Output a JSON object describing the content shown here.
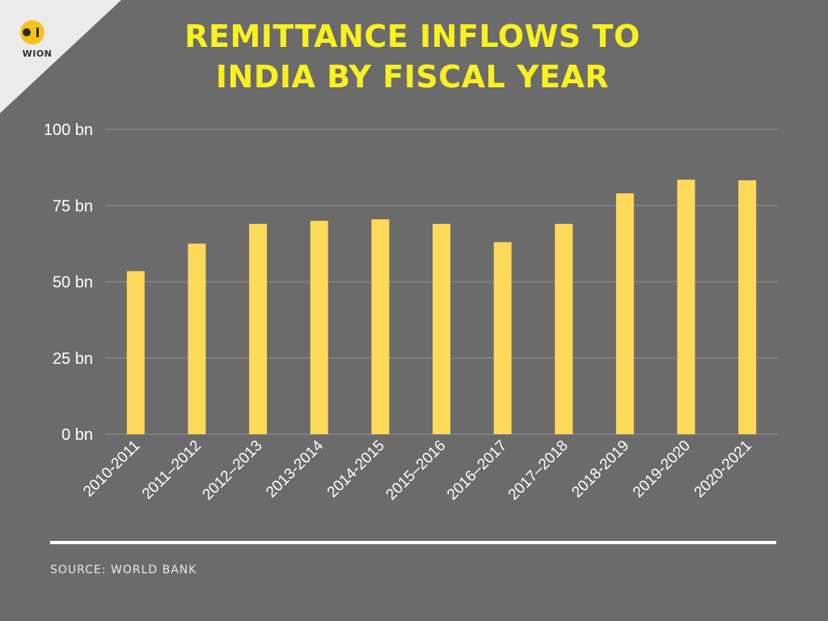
{
  "brand": {
    "logo_text": "WION"
  },
  "header": {
    "title_lines": [
      "REMITTANCE INFLOWS TO",
      "INDIA BY FISCAL YEAR"
    ]
  },
  "footer": {
    "source": "SOURCE: WORLD BANK"
  },
  "colors": {
    "background": "#6b6b6b",
    "bars": "#ffd95a",
    "title": "#f9f021",
    "gridline": "#858585",
    "rule": "#ffffff"
  },
  "chart_data": {
    "type": "bar",
    "title": "REMITTANCE INFLOWS TO INDIA BY FISCAL YEAR",
    "categories": [
      "2010-2011",
      "2011–2012",
      "2012–2013",
      "2013-2014",
      "2014-2015",
      "2015–2016",
      "2016–2017",
      "2017–2018",
      "2018-2019",
      "2019-2020",
      "2020-2021"
    ],
    "values": [
      53.5,
      62.5,
      69,
      70,
      70.5,
      69,
      63,
      69,
      79,
      83.5,
      83.3
    ],
    "ylim": [
      0,
      100
    ],
    "yticks": [
      0,
      25,
      50,
      75,
      100
    ],
    "ytick_labels": [
      "0 bn",
      "25 bn",
      "50 bn",
      "75 bn",
      "100 bn"
    ],
    "xlabel": "",
    "ylabel": "",
    "grid": true
  }
}
